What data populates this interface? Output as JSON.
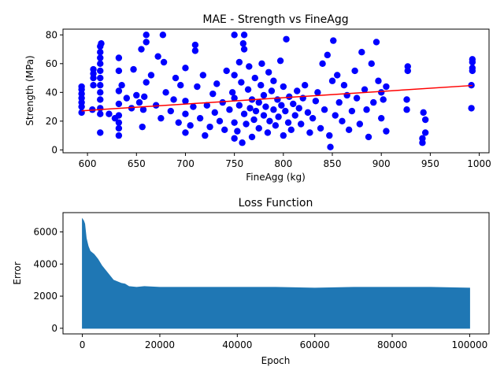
{
  "chart_data": [
    {
      "type": "scatter",
      "title": "MAE - Strength vs FineAgg",
      "xlabel": "FineAgg (kg)",
      "ylabel": "Strength (MPa)",
      "xlim": [
        575,
        1010
      ],
      "ylim": [
        -2,
        84
      ],
      "xticks": [
        600,
        650,
        700,
        750,
        800,
        850,
        900,
        950,
        1000
      ],
      "yticks": [
        0,
        20,
        40,
        60,
        80
      ],
      "grid": false,
      "legend": "none",
      "marker_color": "#0000ff",
      "line_color": "#ff0000",
      "fit_line": {
        "x": [
          594,
          993
        ],
        "y": [
          27.2,
          44.8
        ]
      },
      "points": [
        [
          594,
          26
        ],
        [
          594,
          30
        ],
        [
          594,
          33
        ],
        [
          594,
          36
        ],
        [
          594,
          39
        ],
        [
          594,
          42
        ],
        [
          594,
          44
        ],
        [
          605,
          28
        ],
        [
          606,
          45
        ],
        [
          606,
          50
        ],
        [
          606,
          53
        ],
        [
          606,
          56
        ],
        [
          613,
          12
        ],
        [
          613,
          25
        ],
        [
          613,
          29
        ],
        [
          613,
          35
        ],
        [
          613,
          40
        ],
        [
          613,
          45
        ],
        [
          613,
          50
        ],
        [
          613,
          55
        ],
        [
          613,
          60
        ],
        [
          613,
          64
        ],
        [
          613,
          68
        ],
        [
          613,
          72
        ],
        [
          614,
          74
        ],
        [
          622,
          25
        ],
        [
          628,
          22
        ],
        [
          632,
          10
        ],
        [
          632,
          15
        ],
        [
          632,
          19
        ],
        [
          632,
          24
        ],
        [
          632,
          32
        ],
        [
          632,
          41
        ],
        [
          632,
          55
        ],
        [
          632,
          64
        ],
        [
          635,
          45
        ],
        [
          640,
          36
        ],
        [
          645,
          29
        ],
        [
          647,
          56
        ],
        [
          650,
          38
        ],
        [
          653,
          33
        ],
        [
          655,
          70
        ],
        [
          656,
          16
        ],
        [
          657,
          28
        ],
        [
          658,
          37
        ],
        [
          660,
          80
        ],
        [
          660,
          75
        ],
        [
          660,
          47
        ],
        [
          665,
          52
        ],
        [
          670,
          31
        ],
        [
          672,
          65
        ],
        [
          675,
          22
        ],
        [
          677,
          80
        ],
        [
          678,
          61
        ],
        [
          680,
          40
        ],
        [
          685,
          27
        ],
        [
          688,
          35
        ],
        [
          690,
          50
        ],
        [
          693,
          19
        ],
        [
          695,
          45
        ],
        [
          700,
          12
        ],
        [
          700,
          25
        ],
        [
          700,
          34
        ],
        [
          700,
          57
        ],
        [
          705,
          17
        ],
        [
          708,
          30
        ],
        [
          710,
          73
        ],
        [
          710,
          69
        ],
        [
          712,
          44
        ],
        [
          715,
          22
        ],
        [
          718,
          52
        ],
        [
          720,
          10
        ],
        [
          722,
          31
        ],
        [
          725,
          16
        ],
        [
          728,
          39
        ],
        [
          730,
          26
        ],
        [
          732,
          46
        ],
        [
          735,
          20
        ],
        [
          738,
          33
        ],
        [
          740,
          14
        ],
        [
          742,
          55
        ],
        [
          745,
          28
        ],
        [
          748,
          40
        ],
        [
          750,
          8
        ],
        [
          750,
          19
        ],
        [
          750,
          36
        ],
        [
          750,
          52
        ],
        [
          750,
          80
        ],
        [
          753,
          13
        ],
        [
          755,
          31
        ],
        [
          755,
          61
        ],
        [
          757,
          47
        ],
        [
          758,
          5
        ],
        [
          759,
          74
        ],
        [
          760,
          80
        ],
        [
          760,
          25
        ],
        [
          760,
          70
        ],
        [
          762,
          18
        ],
        [
          764,
          42
        ],
        [
          765,
          58
        ],
        [
          766,
          29
        ],
        [
          768,
          9
        ],
        [
          768,
          35
        ],
        [
          770,
          21
        ],
        [
          771,
          50
        ],
        [
          772,
          27
        ],
        [
          775,
          33
        ],
        [
          775,
          15
        ],
        [
          777,
          45
        ],
        [
          778,
          60
        ],
        [
          780,
          24
        ],
        [
          780,
          38
        ],
        [
          782,
          30
        ],
        [
          784,
          12
        ],
        [
          785,
          54
        ],
        [
          786,
          20
        ],
        [
          788,
          41
        ],
        [
          790,
          28
        ],
        [
          790,
          48
        ],
        [
          792,
          17
        ],
        [
          794,
          35
        ],
        [
          795,
          23
        ],
        [
          797,
          62
        ],
        [
          798,
          31
        ],
        [
          800,
          10
        ],
        [
          800,
          44
        ],
        [
          802,
          27
        ],
        [
          803,
          77
        ],
        [
          805,
          19
        ],
        [
          806,
          37
        ],
        [
          808,
          14
        ],
        [
          810,
          32
        ],
        [
          812,
          24
        ],
        [
          814,
          41
        ],
        [
          816,
          29
        ],
        [
          818,
          18
        ],
        [
          820,
          36
        ],
        [
          822,
          45
        ],
        [
          825,
          26
        ],
        [
          827,
          12
        ],
        [
          830,
          22
        ],
        [
          833,
          34
        ],
        [
          835,
          40
        ],
        [
          838,
          15
        ],
        [
          840,
          60
        ],
        [
          842,
          28
        ],
        [
          845,
          66
        ],
        [
          847,
          10
        ],
        [
          848,
          2
        ],
        [
          850,
          48
        ],
        [
          851,
          76
        ],
        [
          853,
          24
        ],
        [
          855,
          52
        ],
        [
          857,
          33
        ],
        [
          860,
          20
        ],
        [
          862,
          45
        ],
        [
          865,
          38
        ],
        [
          867,
          14
        ],
        [
          870,
          27
        ],
        [
          873,
          55
        ],
        [
          875,
          36
        ],
        [
          878,
          18
        ],
        [
          880,
          68
        ],
        [
          883,
          42
        ],
        [
          885,
          28
        ],
        [
          887,
          9
        ],
        [
          890,
          60
        ],
        [
          892,
          33
        ],
        [
          895,
          75
        ],
        [
          897,
          48
        ],
        [
          900,
          22
        ],
        [
          900,
          40
        ],
        [
          902,
          35
        ],
        [
          905,
          13
        ],
        [
          905,
          44
        ],
        [
          926,
          28
        ],
        [
          926,
          35
        ],
        [
          927,
          55
        ],
        [
          927,
          58
        ],
        [
          942,
          5
        ],
        [
          942,
          8
        ],
        [
          943,
          26
        ],
        [
          945,
          12
        ],
        [
          945,
          21
        ],
        [
          992,
          29
        ],
        [
          992,
          45
        ],
        [
          993,
          55
        ],
        [
          993,
          57
        ],
        [
          993,
          61
        ],
        [
          993,
          63
        ]
      ]
    },
    {
      "type": "area",
      "title": "Loss Function",
      "xlabel": "Epoch",
      "ylabel": "Error",
      "xlim": [
        -5000,
        105000
      ],
      "ylim": [
        -350,
        7200
      ],
      "xticks": [
        0,
        20000,
        40000,
        60000,
        80000,
        100000
      ],
      "yticks": [
        0,
        2000,
        4000,
        6000
      ],
      "grid": false,
      "legend": "none",
      "fill_color": "#1f77b4",
      "lower_bound": 0,
      "upper_envelope": {
        "x": [
          0,
          300,
          600,
          1000,
          1500,
          2000,
          3000,
          4000,
          5000,
          6000,
          7000,
          8000,
          9000,
          10000,
          11000,
          12000,
          14000,
          16000,
          20000,
          30000,
          40000,
          50000,
          60000,
          70000,
          80000,
          90000,
          100000
        ],
        "y": [
          6800,
          6700,
          6500,
          5600,
          5100,
          4800,
          4600,
          4300,
          3900,
          3600,
          3300,
          3000,
          2900,
          2800,
          2750,
          2600,
          2550,
          2600,
          2550,
          2550,
          2550,
          2550,
          2500,
          2550,
          2550,
          2550,
          2500
        ]
      }
    }
  ]
}
